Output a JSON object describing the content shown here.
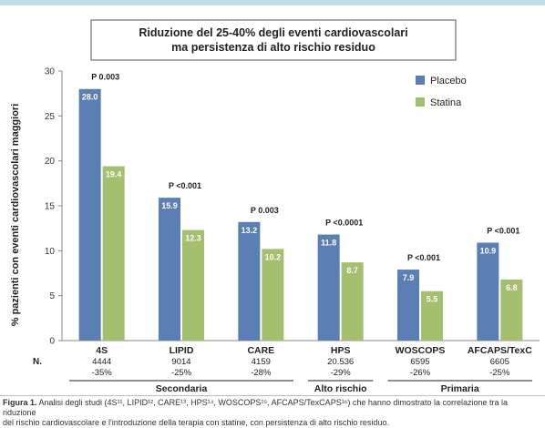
{
  "colors": {
    "placebo": "#5b7fb5",
    "statina": "#a4bf6e",
    "top_rule": "#c5dce8",
    "axis": "#888888",
    "text": "#222222"
  },
  "chart_data": {
    "type": "bar",
    "title_lines": [
      "Riduzione del 25-40% degli eventi cardiovascolari",
      "ma persistenza di alto rischio residuo"
    ],
    "ylabel": "% pazienti con eventi cardiovascolari maggiori",
    "ylim": [
      0,
      30
    ],
    "yticks": [
      0,
      5,
      10,
      15,
      20,
      25,
      30
    ],
    "grid": false,
    "legend_position": "top-right",
    "categories": [
      "4S",
      "LIPID",
      "CARE",
      "HPS",
      "WOSCOPS",
      "AFCAPS/TexC"
    ],
    "series": [
      {
        "name": "Placebo",
        "color": "#5b7fb5",
        "values": [
          28.0,
          15.9,
          13.2,
          11.8,
          7.9,
          10.9
        ]
      },
      {
        "name": "Statina",
        "color": "#a4bf6e",
        "values": [
          19.4,
          12.3,
          10.2,
          8.7,
          5.5,
          6.8
        ]
      }
    ],
    "value_labels": {
      "placebo": [
        "28.0",
        "15.9",
        "13.2",
        "11.8",
        "7.9",
        "10.9"
      ],
      "statina": [
        "19.4",
        "12.3",
        "10.2",
        "8.7",
        "5.5",
        "6.8"
      ]
    },
    "p_values": [
      "P 0.003",
      "P <0.001",
      "P 0.003",
      "P <0.0001",
      "P <0.001",
      "P <0.001"
    ],
    "n_label": "N.",
    "n_values": [
      "4444",
      "9014",
      "4159",
      "20.536",
      "6595",
      "6605"
    ],
    "risk_reductions": [
      "-35%",
      "-25%",
      "-28%",
      "-29%",
      "-26%",
      "-25%"
    ],
    "groups": [
      {
        "label": "Secondaria",
        "from": 0,
        "to": 2
      },
      {
        "label": "Alto rischio",
        "from": 3,
        "to": 3
      },
      {
        "label": "Primaria",
        "from": 4,
        "to": 5
      }
    ]
  },
  "caption": {
    "label": "Figura 1.",
    "line1": " Analisi degli studi (4S¹¹, LIPID¹², CARE¹³, HPS¹⁴, WOSCOPS¹⁵, AFCAPS/TexCAPS¹⁶) che hanno dimostrato la correlazione tra la riduzione",
    "line2": "del rischio cardiovascolare e l'introduzione della terapia con statine, con persistenza di alto rischio residuo."
  }
}
